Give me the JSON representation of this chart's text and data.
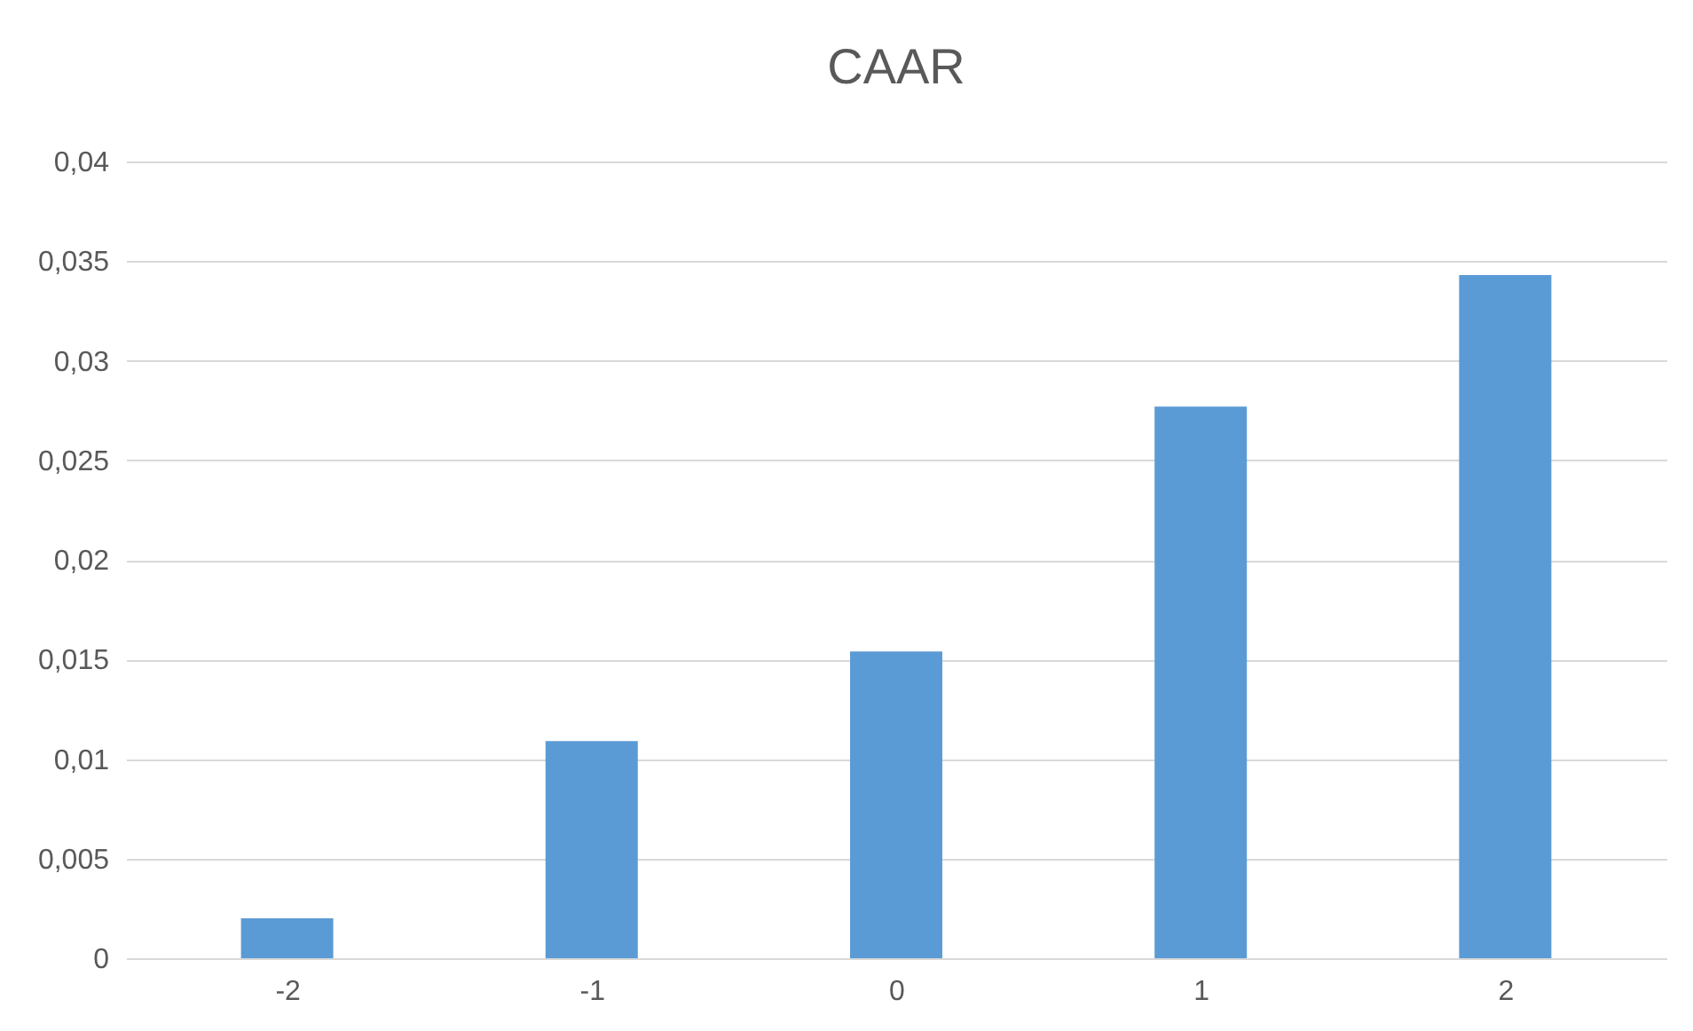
{
  "chart_data": {
    "type": "bar",
    "title": "CAAR",
    "categories": [
      "-2",
      "-1",
      "0",
      "1",
      "2"
    ],
    "values": [
      0.002,
      0.0109,
      0.0154,
      0.0277,
      0.0343
    ],
    "color": "#5b9bd5",
    "ylim": [
      0,
      0.04
    ],
    "yticks": [
      0,
      {
        "value": 0.005,
        "label": "0,005"
      },
      {
        "value": 0.01,
        "label": "0,01"
      },
      {
        "value": 0.015,
        "label": "0,015"
      },
      {
        "value": 0.02,
        "label": "0,02"
      },
      {
        "value": 0.025,
        "label": "0,025"
      },
      {
        "value": 0.03,
        "label": "0,03"
      },
      {
        "value": 0.035,
        "label": "0,035"
      },
      {
        "value": 0.04,
        "label": "0,04"
      }
    ],
    "grid": "y"
  }
}
